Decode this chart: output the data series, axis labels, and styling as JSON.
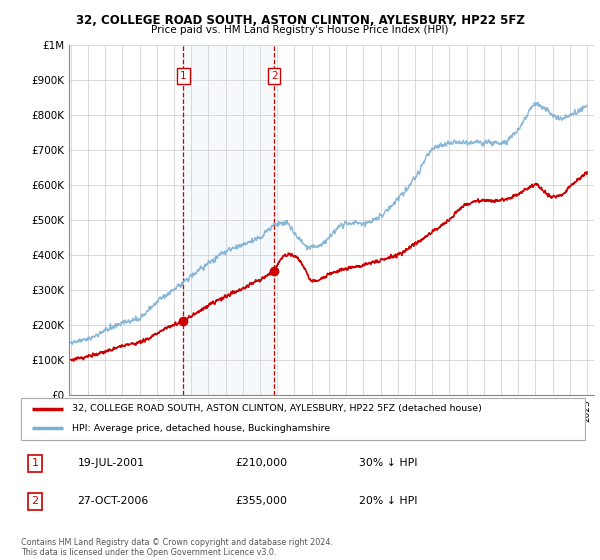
{
  "title": "32, COLLEGE ROAD SOUTH, ASTON CLINTON, AYLESBURY, HP22 5FZ",
  "subtitle": "Price paid vs. HM Land Registry's House Price Index (HPI)",
  "ylim": [
    0,
    1000000
  ],
  "yticks": [
    0,
    100000,
    200000,
    300000,
    400000,
    500000,
    600000,
    700000,
    800000,
    900000,
    1000000
  ],
  "ytick_labels": [
    "£0",
    "£100K",
    "£200K",
    "£300K",
    "£400K",
    "£500K",
    "£600K",
    "£700K",
    "£800K",
    "£900K",
    "£1M"
  ],
  "hpi_color": "#7bafd4",
  "price_color": "#cc0000",
  "shade_color": "#ddeeff",
  "t1_year": 2001.55,
  "t2_year": 2006.82,
  "t1_price": 210000,
  "t2_price": 355000,
  "transaction1": {
    "label": "1",
    "date": "19-JUL-2001",
    "price": 210000,
    "hpi_diff": "30% ↓ HPI"
  },
  "transaction2": {
    "label": "2",
    "date": "27-OCT-2006",
    "price": 355000,
    "hpi_diff": "20% ↓ HPI"
  },
  "legend_property": "32, COLLEGE ROAD SOUTH, ASTON CLINTON, AYLESBURY, HP22 5FZ (detached house)",
  "legend_hpi": "HPI: Average price, detached house, Buckinghamshire",
  "footnote": "Contains HM Land Registry data © Crown copyright and database right 2024.\nThis data is licensed under the Open Government Licence v3.0.",
  "x_start_year": 1995,
  "x_end_year": 2025
}
